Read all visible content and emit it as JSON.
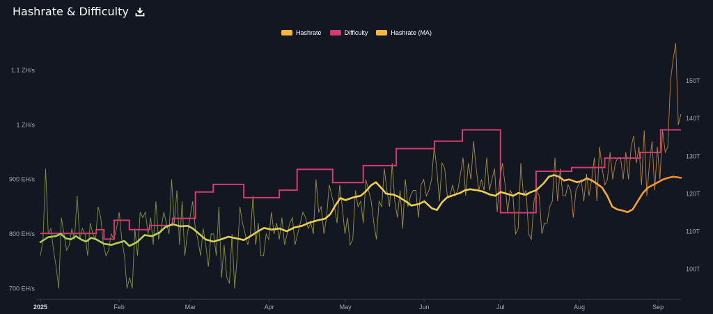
{
  "header": {
    "title": "Hashrate & Difficulty",
    "download_icon": "download-icon"
  },
  "colors": {
    "background": "#131722",
    "hashrate_start": "#9cb84a",
    "hashrate_end": "#f7a440",
    "difficulty": "#d63a6e",
    "ma_start": "#9fcf4f",
    "ma_mid": "#f0d050",
    "ma_end": "#f7882d",
    "axis_line": "#3a3f4b",
    "tick_text": "#a3a9b6"
  },
  "legend": [
    {
      "label": "Hashrate",
      "color": "#f7b73e"
    },
    {
      "label": "Difficulty",
      "color": "#d63a6e"
    },
    {
      "label": "Hashrate (MA)",
      "color": "#f7b73e"
    }
  ],
  "chart_data": {
    "type": "line",
    "x_ticks": [
      {
        "label": "2025",
        "day": 0,
        "bold": true
      },
      {
        "label": "Feb",
        "day": 31
      },
      {
        "label": "Mar",
        "day": 59
      },
      {
        "label": "Apr",
        "day": 90
      },
      {
        "label": "May",
        "day": 120
      },
      {
        "label": "Jun",
        "day": 151
      },
      {
        "label": "Jul",
        "day": 181
      },
      {
        "label": "Aug",
        "day": 212
      },
      {
        "label": "Sep",
        "day": 243
      }
    ],
    "x_range_days": [
      0,
      252
    ],
    "y_left": {
      "unit": "EH/s",
      "range": [
        680,
        1150
      ],
      "ticks": [
        {
          "label": "700 EH/s",
          "value": 700
        },
        {
          "label": "800 EH/s",
          "value": 800
        },
        {
          "label": "900 EH/s",
          "value": 900
        },
        {
          "label": "1 ZH/s",
          "value": 1000
        },
        {
          "label": "1.1 ZH/s",
          "value": 1100
        }
      ]
    },
    "y_right": {
      "unit": "T",
      "range": [
        92,
        160
      ],
      "ticks": [
        {
          "label": "100T",
          "value": 100
        },
        {
          "label": "110T",
          "value": 110
        },
        {
          "label": "120T",
          "value": 120
        },
        {
          "label": "130T",
          "value": 130
        },
        {
          "label": "140T",
          "value": 140
        },
        {
          "label": "150T",
          "value": 150
        }
      ]
    },
    "series": [
      {
        "name": "Hashrate (MA)",
        "axis": "left",
        "points": [
          [
            0,
            785
          ],
          [
            3,
            794
          ],
          [
            6,
            796
          ],
          [
            8,
            800
          ],
          [
            10,
            792
          ],
          [
            12,
            790
          ],
          [
            14,
            796
          ],
          [
            16,
            790
          ],
          [
            18,
            786
          ],
          [
            20,
            793
          ],
          [
            22,
            790
          ],
          [
            25,
            782
          ],
          [
            28,
            780
          ],
          [
            30,
            783
          ],
          [
            33,
            787
          ],
          [
            35,
            778
          ],
          [
            38,
            785
          ],
          [
            41,
            798
          ],
          [
            44,
            796
          ],
          [
            47,
            803
          ],
          [
            49,
            812
          ],
          [
            52,
            818
          ],
          [
            55,
            814
          ],
          [
            58,
            815
          ],
          [
            60,
            810
          ],
          [
            63,
            798
          ],
          [
            65,
            790
          ],
          [
            68,
            786
          ],
          [
            71,
            790
          ],
          [
            74,
            795
          ],
          [
            77,
            792
          ],
          [
            80,
            789
          ],
          [
            83,
            797
          ],
          [
            86,
            806
          ],
          [
            88,
            811
          ],
          [
            91,
            808
          ],
          [
            94,
            810
          ],
          [
            97,
            805
          ],
          [
            100,
            812
          ],
          [
            103,
            815
          ],
          [
            106,
            821
          ],
          [
            109,
            825
          ],
          [
            112,
            828
          ],
          [
            114,
            836
          ],
          [
            116,
            852
          ],
          [
            118,
            866
          ],
          [
            120,
            862
          ],
          [
            123,
            867
          ],
          [
            126,
            870
          ],
          [
            128,
            878
          ],
          [
            130,
            889
          ],
          [
            132,
            895
          ],
          [
            134,
            885
          ],
          [
            136,
            874
          ],
          [
            139,
            872
          ],
          [
            141,
            868
          ],
          [
            144,
            859
          ],
          [
            146,
            852
          ],
          [
            149,
            855
          ],
          [
            151,
            860
          ],
          [
            154,
            847
          ],
          [
            156,
            844
          ],
          [
            158,
            858
          ],
          [
            160,
            867
          ],
          [
            163,
            872
          ],
          [
            165,
            875
          ],
          [
            167,
            880
          ],
          [
            169,
            882
          ],
          [
            172,
            880
          ],
          [
            174,
            878
          ],
          [
            177,
            872
          ],
          [
            179,
            870
          ],
          [
            181,
            877
          ],
          [
            184,
            873
          ],
          [
            186,
            870
          ],
          [
            188,
            875
          ],
          [
            191,
            872
          ],
          [
            193,
            877
          ],
          [
            195,
            880
          ],
          [
            198,
            893
          ],
          [
            200,
            905
          ],
          [
            202,
            908
          ],
          [
            204,
            905
          ],
          [
            206,
            898
          ],
          [
            208,
            900
          ],
          [
            211,
            895
          ],
          [
            213,
            897
          ],
          [
            215,
            902
          ],
          [
            217,
            898
          ],
          [
            219,
            892
          ],
          [
            221,
            885
          ],
          [
            223,
            870
          ],
          [
            225,
            850
          ],
          [
            227,
            845
          ],
          [
            229,
            843
          ],
          [
            231,
            840
          ],
          [
            233,
            845
          ],
          [
            235,
            860
          ],
          [
            237,
            875
          ],
          [
            239,
            885
          ],
          [
            241,
            890
          ],
          [
            243,
            895
          ],
          [
            245,
            900
          ],
          [
            247,
            903
          ],
          [
            249,
            905
          ],
          [
            252,
            903
          ]
        ]
      },
      {
        "name": "Difficulty",
        "axis": "right",
        "points": [
          [
            0,
            109.5
          ],
          [
            22,
            109.5
          ],
          [
            22,
            110.5
          ],
          [
            25,
            110.5
          ],
          [
            25,
            108
          ],
          [
            29,
            108
          ],
          [
            29,
            113
          ],
          [
            35,
            113
          ],
          [
            35,
            110.5
          ],
          [
            43,
            110.5
          ],
          [
            43,
            111.6
          ],
          [
            52,
            111.6
          ],
          [
            52,
            113.5
          ],
          [
            61,
            113.5
          ],
          [
            61,
            120.5
          ],
          [
            68,
            120.5
          ],
          [
            68,
            122.5
          ],
          [
            80,
            122.5
          ],
          [
            80,
            119
          ],
          [
            94,
            119
          ],
          [
            94,
            121
          ],
          [
            101,
            121
          ],
          [
            101,
            126.5
          ],
          [
            115,
            126.5
          ],
          [
            115,
            123
          ],
          [
            127,
            123
          ],
          [
            127,
            127.5
          ],
          [
            140,
            127.5
          ],
          [
            140,
            132
          ],
          [
            155,
            132
          ],
          [
            155,
            134
          ],
          [
            166,
            134
          ],
          [
            166,
            137
          ],
          [
            181,
            137
          ],
          [
            181,
            115
          ],
          [
            195,
            115
          ],
          [
            195,
            126
          ],
          [
            209,
            126
          ],
          [
            209,
            127
          ],
          [
            222,
            127
          ],
          [
            222,
            129.5
          ],
          [
            236,
            129.5
          ],
          [
            236,
            131
          ],
          [
            244,
            131
          ],
          [
            244,
            137
          ],
          [
            252,
            137
          ]
        ]
      }
    ],
    "hashrate_daily": {
      "name": "Hashrate",
      "axis": "left",
      "values": [
        760,
        790,
        920,
        800,
        810,
        770,
        740,
        700,
        830,
        800,
        770,
        780,
        810,
        790,
        870,
        790,
        810,
        800,
        760,
        820,
        800,
        790,
        850,
        830,
        780,
        760,
        770,
        800,
        790,
        810,
        840,
        790,
        760,
        700,
        720,
        700,
        810,
        760,
        840,
        830,
        840,
        800,
        830,
        780,
        860,
        790,
        810,
        840,
        820,
        800,
        900,
        820,
        880,
        780,
        860,
        760,
        800,
        830,
        860,
        810,
        790,
        760,
        810,
        780,
        740,
        800,
        800,
        760,
        850,
        720,
        780,
        720,
        710,
        800,
        700,
        760,
        850,
        820,
        800,
        780,
        800,
        870,
        780,
        820,
        760,
        760,
        800,
        790,
        840,
        800,
        820,
        790,
        830,
        780,
        800,
        820,
        830,
        780,
        800,
        820,
        840,
        830,
        810,
        820,
        800,
        900,
        840,
        850,
        800,
        830,
        890,
        870,
        850,
        820,
        890,
        850,
        800,
        830,
        780,
        790,
        880,
        850,
        860,
        820,
        900,
        880,
        860,
        820,
        790,
        860,
        850,
        920,
        880,
        850,
        930,
        860,
        830,
        880,
        810,
        900,
        850,
        870,
        880,
        880,
        830,
        890,
        900,
        870,
        880,
        900,
        960,
        920,
        860,
        930,
        920,
        870,
        870,
        890,
        870,
        880,
        910,
        940,
        870,
        930,
        900,
        970,
        920,
        880,
        900,
        880,
        940,
        880,
        900,
        920,
        840,
        900,
        930,
        890,
        840,
        880,
        870,
        800,
        810,
        930,
        870,
        880,
        800,
        790,
        860,
        880,
        870,
        800,
        820,
        820,
        850,
        860,
        940,
        860,
        920,
        870,
        870,
        890,
        880,
        830,
        880,
        890,
        900,
        860,
        910,
        870,
        900,
        940,
        860,
        960,
        920,
        890,
        900,
        950,
        900,
        930,
        940,
        940,
        900,
        950,
        900,
        960,
        980,
        930,
        960,
        890,
        990,
        870,
        930,
        970,
        880,
        960,
        900,
        990,
        950,
        960,
        1080,
        1120,
        1150,
        1000,
        1020
      ]
    }
  }
}
